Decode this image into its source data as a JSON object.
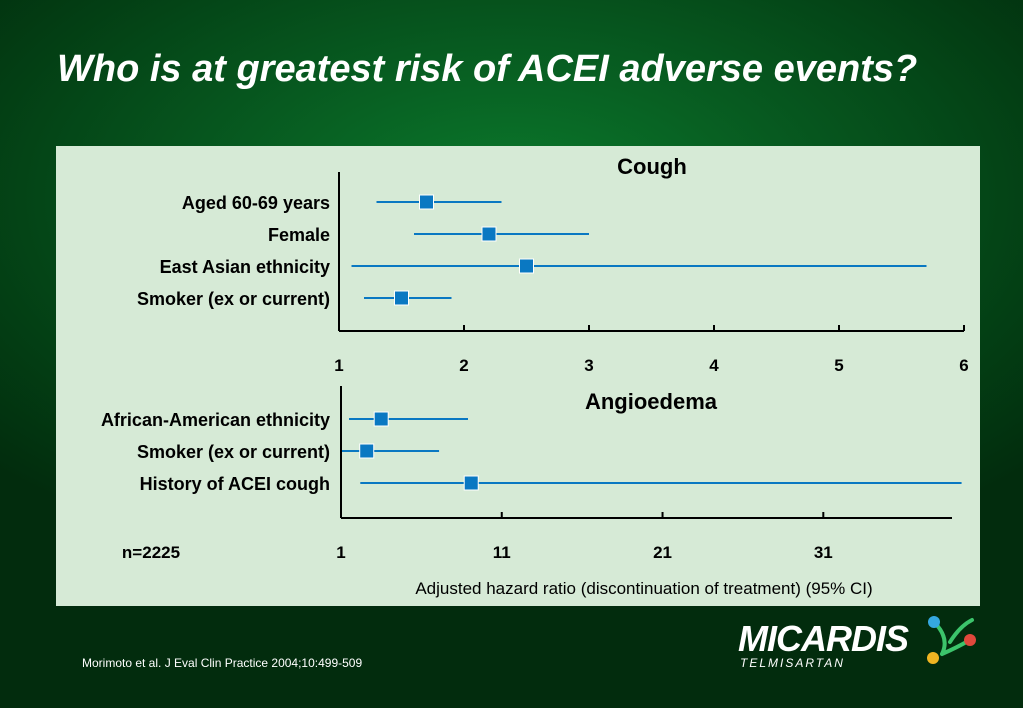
{
  "title": "Who is at greatest risk of ACEI adverse events?",
  "n_label": "n=2225",
  "footnote": "Morimoto et al. J Eval Clin Practice 2004;10:499-509",
  "logo": {
    "brand": "MICARDIS",
    "subtitle": "TELMISARTAN"
  },
  "colors": {
    "marker": "#0a78c2",
    "line": "#0a78c2",
    "panel": "#d6ead6",
    "axis": "#000000"
  },
  "chart_data": [
    {
      "type": "forest",
      "title": "Cough",
      "xlabel": "",
      "xlim": [
        1,
        6
      ],
      "xticks": [
        1,
        2,
        3,
        4,
        5,
        6
      ],
      "grid": false,
      "rows": [
        {
          "label": "Aged 60-69 years",
          "estimate": 1.7,
          "ci": [
            1.3,
            2.3
          ]
        },
        {
          "label": "Female",
          "estimate": 2.2,
          "ci": [
            1.6,
            3.0
          ]
        },
        {
          "label": "East Asian ethnicity",
          "estimate": 2.5,
          "ci": [
            1.1,
            5.7
          ]
        },
        {
          "label": "Smoker (ex or current)",
          "estimate": 1.5,
          "ci": [
            1.2,
            1.9
          ]
        }
      ]
    },
    {
      "type": "forest",
      "title": "Angioedema",
      "xlabel": "Adjusted hazard ratio (discontinuation of treatment) (95% CI)",
      "xlim": [
        1,
        40
      ],
      "xticks": [
        1,
        11,
        21,
        31
      ],
      "grid": false,
      "rows": [
        {
          "label": "African-American ethnicity",
          "estimate": 3.5,
          "ci": [
            1.5,
            8.9
          ]
        },
        {
          "label": "Smoker (ex or current)",
          "estimate": 2.6,
          "ci": [
            1.0,
            7.1
          ]
        },
        {
          "label": "History of ACEI cough",
          "estimate": 9.1,
          "ci": [
            2.2,
            39.6
          ]
        }
      ]
    }
  ]
}
